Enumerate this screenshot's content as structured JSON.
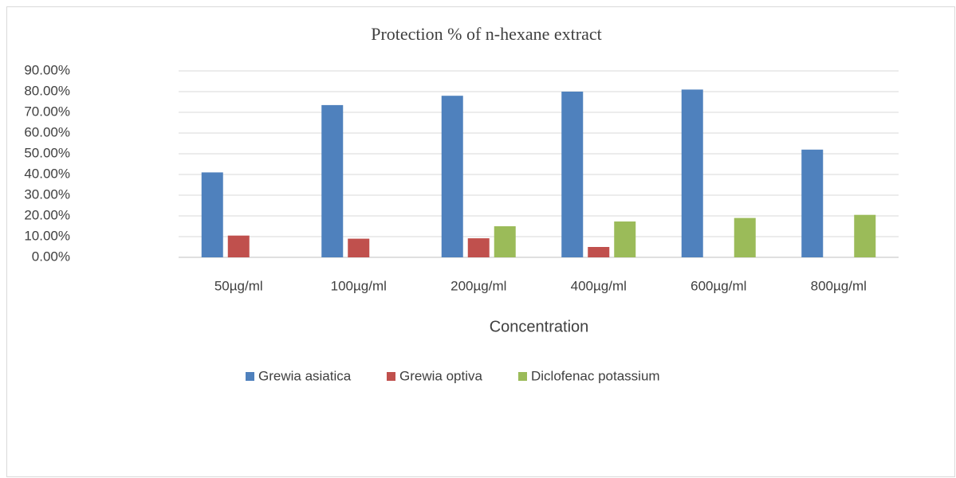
{
  "chart_data": {
    "type": "bar",
    "title": "Protection % of n-hexane extract",
    "x_label": "Concentration",
    "categories": [
      "50µg/ml",
      "100µg/ml",
      "200µg/ml",
      "400µg/ml",
      "600µg/ml",
      "800µg/ml"
    ],
    "series": [
      {
        "name": "Grewia asiatica",
        "color": "#4f81bd",
        "values": [
          41,
          73.5,
          78,
          80,
          81,
          52
        ]
      },
      {
        "name": "Grewia optiva",
        "color": "#c0504d",
        "values": [
          10.5,
          9,
          9.2,
          5,
          null,
          null
        ]
      },
      {
        "name": "Diclofenac potassium",
        "color": "#9bbb59",
        "values": [
          null,
          null,
          15,
          17.3,
          19,
          20.5
        ]
      }
    ],
    "ylim": [
      0,
      90
    ],
    "yticks": [
      {
        "value": 0,
        "label": "0.00%"
      },
      {
        "value": 10,
        "label": "10.00%"
      },
      {
        "value": 20,
        "label": "20.00%"
      },
      {
        "value": 30,
        "label": "30.00%"
      },
      {
        "value": 40,
        "label": "40.00%"
      },
      {
        "value": 50,
        "label": "50.00%"
      },
      {
        "value": 60,
        "label": "60.00%"
      },
      {
        "value": 70,
        "label": "70.00%"
      },
      {
        "value": 80,
        "label": "80.00%"
      },
      {
        "value": 90,
        "label": "90.00%"
      }
    ],
    "grid": true,
    "legend": "bottom"
  }
}
